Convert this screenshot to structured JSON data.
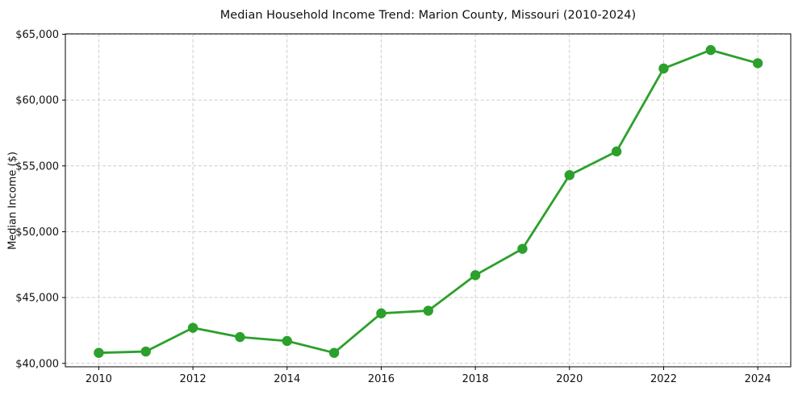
{
  "chart_data": {
    "type": "line",
    "title": "Median Household Income Trend: Marion County, Missouri (2010-2024)",
    "xlabel": "",
    "ylabel": "Median Income ($)",
    "x": [
      2010,
      2011,
      2012,
      2013,
      2014,
      2015,
      2016,
      2017,
      2018,
      2019,
      2020,
      2021,
      2022,
      2023,
      2024
    ],
    "values": [
      40800,
      40900,
      42700,
      42000,
      41700,
      40800,
      43800,
      44000,
      46700,
      48700,
      54300,
      56100,
      62400,
      63800,
      62800
    ],
    "series_name": "Median household income",
    "line_color": "#2ca02c",
    "marker": "circle",
    "xlim": [
      2009.29,
      2024.7
    ],
    "ylim": [
      39740,
      65030
    ],
    "xticks": [
      2010,
      2012,
      2014,
      2016,
      2018,
      2020,
      2022,
      2024
    ],
    "xtick_labels": [
      "2010",
      "2012",
      "2014",
      "2016",
      "2018",
      "2020",
      "2022",
      "2024"
    ],
    "yticks": [
      40000,
      45000,
      50000,
      55000,
      60000,
      65000
    ],
    "ytick_labels": [
      "$40,000",
      "$45,000",
      "$50,000",
      "$55,000",
      "$60,000",
      "$65,000"
    ],
    "grid": "dashed both axes",
    "legend": "none"
  }
}
